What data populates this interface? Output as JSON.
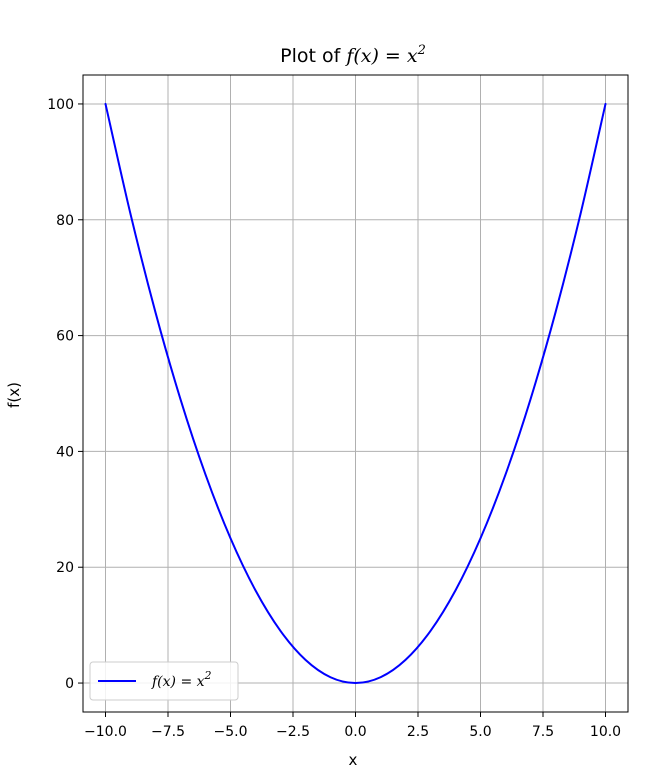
{
  "chart_data": {
    "type": "line",
    "title_prefix": "Plot of ",
    "title_math": "f(x) = x",
    "title_sup": "2",
    "xlabel": "x",
    "ylabel": "f(x)",
    "xlim": [
      -10.9,
      10.9
    ],
    "ylim": [
      -5,
      105
    ],
    "x_ticks": [
      -10.0,
      -7.5,
      -5.0,
      -2.5,
      0.0,
      2.5,
      5.0,
      7.5,
      10.0
    ],
    "x_tick_labels": [
      "−10.0",
      "−7.5",
      "−5.0",
      "−2.5",
      "0.0",
      "2.5",
      "5.0",
      "7.5",
      "10.0"
    ],
    "y_ticks": [
      0,
      20,
      40,
      60,
      80,
      100
    ],
    "y_tick_labels": [
      "0",
      "20",
      "40",
      "60",
      "80",
      "100"
    ],
    "grid": true,
    "legend_position": "lower-left",
    "series": [
      {
        "name": "f(x) = x",
        "name_sup": "2",
        "color": "#0000ff",
        "x": [
          -10,
          -9,
          -8,
          -7,
          -6,
          -5,
          -4,
          -3,
          -2,
          -1,
          0,
          1,
          2,
          3,
          4,
          5,
          6,
          7,
          8,
          9,
          10
        ],
        "y": [
          100,
          81,
          64,
          49,
          36,
          25,
          16,
          9,
          4,
          1,
          0,
          1,
          4,
          9,
          16,
          25,
          36,
          49,
          64,
          81,
          100
        ]
      }
    ]
  }
}
